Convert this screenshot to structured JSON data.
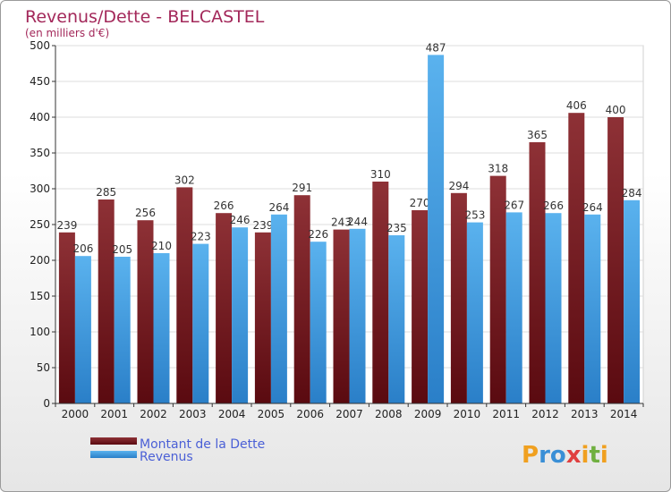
{
  "chart_data": {
    "type": "bar",
    "title": "Revenus/Dette - BELCASTEL",
    "subtitle": "(en milliers d'€)",
    "categories": [
      "2000",
      "2001",
      "2002",
      "2003",
      "2004",
      "2005",
      "2006",
      "2007",
      "2008",
      "2009",
      "2010",
      "2011",
      "2012",
      "2013",
      "2014"
    ],
    "series": [
      {
        "name": "Montant de la Dette",
        "color": "#8b2a30",
        "values": [
          239,
          285,
          256,
          302,
          266,
          239,
          291,
          243,
          310,
          270,
          294,
          318,
          365,
          406,
          400
        ]
      },
      {
        "name": "Revenus",
        "color": "#4aa3e6",
        "values": [
          206,
          205,
          210,
          223,
          246,
          264,
          226,
          244,
          235,
          487,
          253,
          267,
          266,
          264,
          284
        ]
      }
    ],
    "ylim": [
      0,
      500
    ],
    "yticks": [
      0,
      50,
      100,
      150,
      200,
      250,
      300,
      350,
      400,
      450,
      500
    ],
    "grid": true,
    "legend": "bottom-left"
  },
  "logo": {
    "text": "Proxiti",
    "letters": [
      "P",
      "r",
      "o",
      "x",
      "i",
      "t",
      "i"
    ],
    "colors": [
      "#f0a020",
      "#3a8fd6",
      "#3a8fd6",
      "#e04040",
      "#f0a020",
      "#70b040",
      "#f0a020"
    ]
  }
}
